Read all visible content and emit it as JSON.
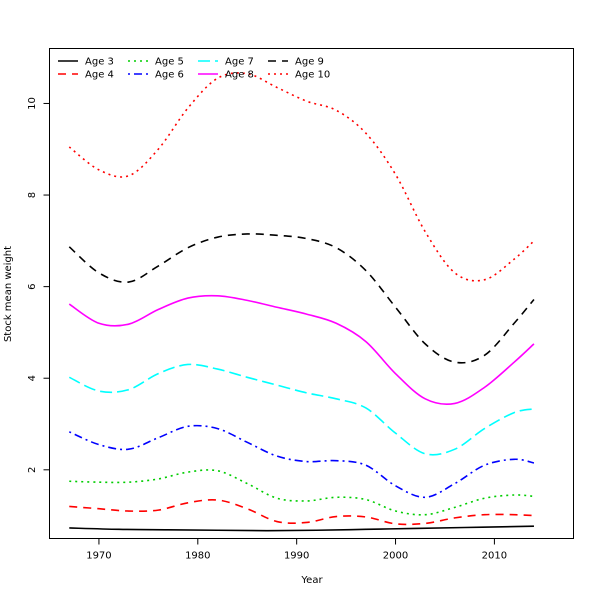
{
  "chart_data": {
    "type": "line",
    "title": "",
    "xlabel": "Year",
    "ylabel": "Stock mean weight",
    "xlim": [
      1965,
      2018
    ],
    "ylim": [
      0.5,
      11.2
    ],
    "xticks": [
      1970,
      1980,
      1990,
      2000,
      2010
    ],
    "yticks": [
      2,
      4,
      6,
      8,
      10
    ],
    "grid": false,
    "legend": {
      "placement": "top-left",
      "columns": 4,
      "entries": [
        "Age 3",
        "Age 4",
        "Age 5",
        "Age 6",
        "Age 7",
        "Age 8",
        "Age 9",
        "Age 10"
      ]
    },
    "series": [
      {
        "name": "Age 3",
        "color": "#000000",
        "dash": "solid",
        "x": [
          1967,
          1972,
          1977,
          1982,
          1987,
          1992,
          1997,
          2002,
          2007,
          2012,
          2014
        ],
        "values": [
          0.73,
          0.7,
          0.69,
          0.68,
          0.67,
          0.68,
          0.7,
          0.72,
          0.74,
          0.76,
          0.77
        ]
      },
      {
        "name": "Age 4",
        "color": "#ff0000",
        "dash": "dashed",
        "x": [
          1967,
          1970,
          1973,
          1976,
          1979,
          1982,
          1985,
          1988,
          1991,
          1994,
          1997,
          2000,
          2003,
          2006,
          2009,
          2012,
          2014
        ],
        "values": [
          1.2,
          1.15,
          1.1,
          1.12,
          1.28,
          1.34,
          1.15,
          0.87,
          0.85,
          0.98,
          0.97,
          0.82,
          0.83,
          0.95,
          1.02,
          1.02,
          1.0
        ]
      },
      {
        "name": "Age 5",
        "color": "#00cd00",
        "dash": "dotted",
        "x": [
          1967,
          1970,
          1973,
          1976,
          1979,
          1982,
          1985,
          1988,
          1991,
          1994,
          1997,
          2000,
          2003,
          2006,
          2009,
          2012,
          2014
        ],
        "values": [
          1.75,
          1.73,
          1.73,
          1.8,
          1.95,
          1.98,
          1.7,
          1.38,
          1.32,
          1.4,
          1.35,
          1.1,
          1.02,
          1.18,
          1.38,
          1.45,
          1.42
        ]
      },
      {
        "name": "Age 6",
        "color": "#0000ff",
        "dash": "dotdash",
        "x": [
          1967,
          1970,
          1973,
          1976,
          1979,
          1982,
          1985,
          1988,
          1991,
          1994,
          1997,
          2000,
          2003,
          2006,
          2009,
          2012,
          2014
        ],
        "values": [
          2.83,
          2.55,
          2.45,
          2.7,
          2.95,
          2.9,
          2.6,
          2.3,
          2.18,
          2.2,
          2.1,
          1.65,
          1.4,
          1.7,
          2.1,
          2.23,
          2.15
        ]
      },
      {
        "name": "Age 7",
        "color": "#00ffff",
        "dash": "longdash",
        "x": [
          1967,
          1970,
          1973,
          1976,
          1979,
          1982,
          1985,
          1988,
          1991,
          1994,
          1997,
          2000,
          2003,
          2006,
          2009,
          2012,
          2014
        ],
        "values": [
          4.02,
          3.72,
          3.75,
          4.1,
          4.3,
          4.2,
          4.02,
          3.85,
          3.68,
          3.55,
          3.35,
          2.8,
          2.35,
          2.45,
          2.9,
          3.25,
          3.33
        ]
      },
      {
        "name": "Age 8",
        "color": "#ff00ff",
        "dash": "solid",
        "x": [
          1967,
          1970,
          1973,
          1976,
          1979,
          1982,
          1985,
          1988,
          1991,
          1994,
          1997,
          2000,
          2003,
          2006,
          2009,
          2012,
          2014
        ],
        "values": [
          5.62,
          5.2,
          5.18,
          5.5,
          5.75,
          5.8,
          5.7,
          5.55,
          5.4,
          5.2,
          4.8,
          4.1,
          3.55,
          3.45,
          3.8,
          4.35,
          4.75
        ]
      },
      {
        "name": "Age 9",
        "color": "#000000",
        "dash": "dashed",
        "x": [
          1967,
          1970,
          1973,
          1976,
          1979,
          1982,
          1985,
          1988,
          1991,
          1994,
          1997,
          2000,
          2003,
          2006,
          2009,
          2012,
          2014
        ],
        "values": [
          6.87,
          6.3,
          6.1,
          6.45,
          6.85,
          7.08,
          7.15,
          7.12,
          7.05,
          6.85,
          6.35,
          5.55,
          4.75,
          4.35,
          4.5,
          5.2,
          5.72
        ]
      },
      {
        "name": "Age 10",
        "color": "#ff0000",
        "dash": "dotted",
        "x": [
          1967,
          1970,
          1973,
          1976,
          1979,
          1982,
          1985,
          1988,
          1991,
          1994,
          1997,
          2000,
          2003,
          2006,
          2009,
          2012,
          2014
        ],
        "values": [
          9.05,
          8.55,
          8.42,
          9.0,
          9.9,
          10.55,
          10.65,
          10.35,
          10.05,
          9.85,
          9.35,
          8.45,
          7.2,
          6.3,
          6.15,
          6.6,
          7.0
        ]
      }
    ]
  }
}
